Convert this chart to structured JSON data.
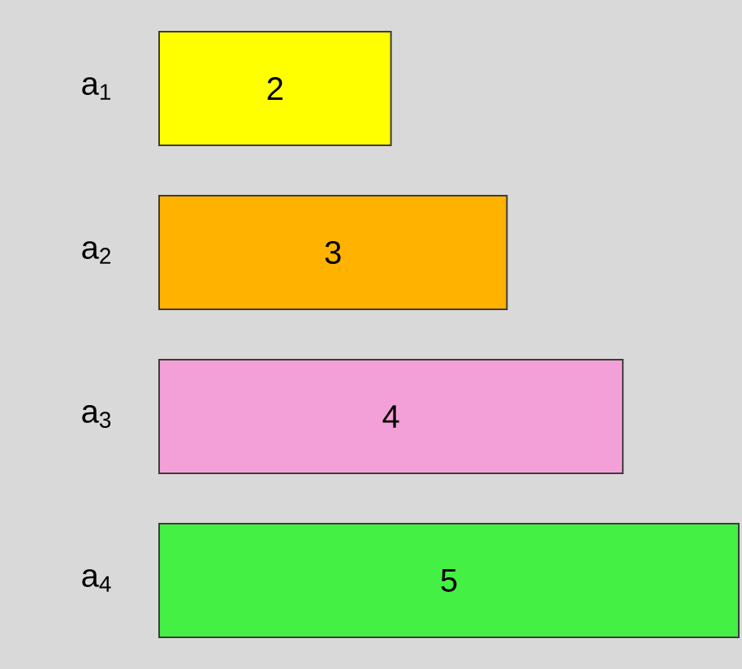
{
  "chart_data": {
    "type": "bar",
    "orientation": "horizontal",
    "categories": [
      "a$_{1}$",
      "a$_{2}$",
      "a$_{3}$",
      "a$_{4}$"
    ],
    "values": [
      2,
      3,
      4,
      5
    ],
    "colors": [
      "#ffff00",
      "#ffb300",
      "#f4a0d8",
      "#44f044"
    ],
    "data_labels": true
  }
}
